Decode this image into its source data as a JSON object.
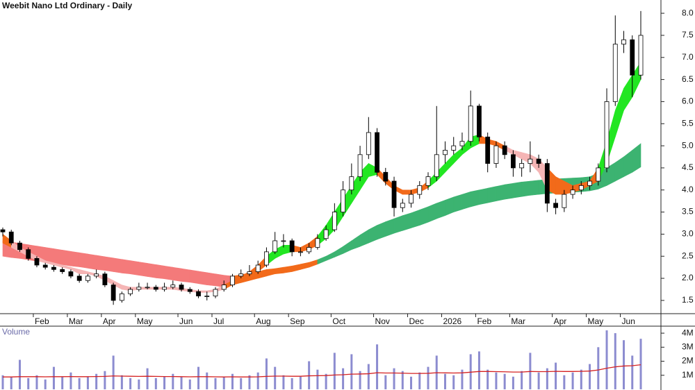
{
  "chart_data": [
    {
      "type": "candlestick",
      "title": "Weebit Nano Ltd Ordinary - Daily",
      "categories": [
        null,
        null,
        null,
        null,
        "Feb",
        null,
        null,
        null,
        "Mar",
        null,
        null,
        null,
        "Apr",
        null,
        null,
        null,
        "May",
        null,
        null,
        null,
        null,
        "Jun",
        null,
        null,
        null,
        "Jul",
        null,
        null,
        null,
        null,
        "Aug",
        null,
        null,
        null,
        "Sep",
        null,
        null,
        null,
        null,
        "Oct",
        null,
        null,
        null,
        null,
        "Nov",
        null,
        null,
        null,
        "Dec",
        null,
        null,
        null,
        "2026",
        null,
        null,
        null,
        "Feb",
        null,
        null,
        null,
        "Mar",
        null,
        null,
        null,
        null,
        "Apr",
        null,
        null,
        null,
        "May",
        null,
        null,
        null,
        "Jun",
        null,
        null
      ],
      "open": [
        3.1,
        3.05,
        2.8,
        2.65,
        2.45,
        2.3,
        2.25,
        2.2,
        2.15,
        2.05,
        1.95,
        2.05,
        2.1,
        1.85,
        1.5,
        1.65,
        1.75,
        1.8,
        1.8,
        1.75,
        1.8,
        1.85,
        1.75,
        1.7,
        1.6,
        1.6,
        1.75,
        1.85,
        2.05,
        2.1,
        2.15,
        2.3,
        2.6,
        2.85,
        2.85,
        2.6,
        2.6,
        2.7,
        2.9,
        3.1,
        3.5,
        4.0,
        4.3,
        4.8,
        5.3,
        4.4,
        4.2,
        3.6,
        3.7,
        3.9,
        4.1,
        4.3,
        4.8,
        4.9,
        5.0,
        5.1,
        5.9,
        5.2,
        4.6,
        5.0,
        4.8,
        4.5,
        4.6,
        4.7,
        4.6,
        3.7,
        3.6,
        3.9,
        4.0,
        4.1,
        4.2,
        4.5,
        6.0,
        7.3,
        7.4,
        6.6
      ],
      "high": [
        3.15,
        3.1,
        2.85,
        2.7,
        2.5,
        2.35,
        2.3,
        2.25,
        2.2,
        2.1,
        2.1,
        2.2,
        2.15,
        1.9,
        1.7,
        1.8,
        1.9,
        1.9,
        1.85,
        1.9,
        1.95,
        1.9,
        1.8,
        1.75,
        1.7,
        1.8,
        1.95,
        2.1,
        2.2,
        2.3,
        2.4,
        2.7,
        3.05,
        3.0,
        2.9,
        2.7,
        2.8,
        3.0,
        3.2,
        3.7,
        4.2,
        4.6,
        5.0,
        5.65,
        5.4,
        4.5,
        4.3,
        3.8,
        4.0,
        4.2,
        4.4,
        5.9,
        5.1,
        5.2,
        5.3,
        6.25,
        5.95,
        5.3,
        5.1,
        5.1,
        4.9,
        4.7,
        5.1,
        4.8,
        4.7,
        3.8,
        4.0,
        4.1,
        4.2,
        4.3,
        4.6,
        6.3,
        7.95,
        7.6,
        7.5,
        8.05
      ],
      "low": [
        2.95,
        2.75,
        2.6,
        2.4,
        2.25,
        2.2,
        2.15,
        2.1,
        2.0,
        1.9,
        1.9,
        2.0,
        1.8,
        1.4,
        1.45,
        1.6,
        1.7,
        1.75,
        1.7,
        1.7,
        1.75,
        1.7,
        1.65,
        1.55,
        1.5,
        1.55,
        1.7,
        1.8,
        2.0,
        2.05,
        2.1,
        2.25,
        2.55,
        2.7,
        2.5,
        2.5,
        2.55,
        2.65,
        2.85,
        3.05,
        3.4,
        3.9,
        4.2,
        4.7,
        4.3,
        4.1,
        3.4,
        3.5,
        3.6,
        3.8,
        4.0,
        4.2,
        4.6,
        4.8,
        4.9,
        5.0,
        5.1,
        4.4,
        4.5,
        4.7,
        4.3,
        4.3,
        4.4,
        4.5,
        3.5,
        3.45,
        3.5,
        3.8,
        3.9,
        4.0,
        4.1,
        4.4,
        5.9,
        7.1,
        6.1,
        6.5
      ],
      "close": [
        3.05,
        2.8,
        2.65,
        2.45,
        2.3,
        2.25,
        2.2,
        2.15,
        2.05,
        1.95,
        2.05,
        2.1,
        1.85,
        1.5,
        1.65,
        1.75,
        1.8,
        1.8,
        1.75,
        1.8,
        1.85,
        1.75,
        1.7,
        1.6,
        1.6,
        1.75,
        1.85,
        2.05,
        2.1,
        2.15,
        2.3,
        2.6,
        2.85,
        2.85,
        2.6,
        2.6,
        2.7,
        2.9,
        3.1,
        3.5,
        4.0,
        4.3,
        4.8,
        5.3,
        4.4,
        4.2,
        3.6,
        3.7,
        3.9,
        4.1,
        4.3,
        4.8,
        4.9,
        5.0,
        5.1,
        5.9,
        5.2,
        4.6,
        5.0,
        4.8,
        4.5,
        4.6,
        4.7,
        4.6,
        3.7,
        3.6,
        3.9,
        4.0,
        4.1,
        4.2,
        4.5,
        6.0,
        7.3,
        7.4,
        6.6,
        7.5
      ],
      "ribbons": [
        {
          "upper": [
            2.85,
            2.82,
            2.79,
            2.76,
            2.73,
            2.7,
            2.67,
            2.64,
            2.61,
            2.58,
            2.55,
            2.52,
            2.49,
            2.46,
            2.43,
            2.4,
            2.37,
            2.34,
            2.31,
            2.28,
            2.25,
            2.22,
            2.19,
            2.16,
            2.13,
            2.1,
            2.07,
            2.05,
            2.08,
            2.12,
            2.15,
            2.2,
            2.22,
            2.25,
            2.28,
            2.32,
            2.36,
            2.42,
            2.5,
            2.6,
            2.72,
            2.85,
            2.98,
            3.1,
            3.2,
            3.28,
            3.35,
            3.42,
            3.48,
            3.55,
            3.62,
            3.7,
            3.77,
            3.84,
            3.9,
            3.96,
            4.0,
            4.04,
            4.08,
            4.12,
            4.15,
            4.18,
            4.2,
            4.22,
            4.24,
            4.25,
            4.26,
            4.27,
            4.28,
            4.3,
            4.38,
            4.5,
            4.62,
            4.75,
            4.9,
            5.05
          ],
          "lower": [
            2.5,
            2.47,
            2.45,
            2.42,
            2.39,
            2.37,
            2.34,
            2.31,
            2.28,
            2.26,
            2.23,
            2.2,
            2.18,
            2.15,
            2.12,
            2.1,
            2.07,
            2.04,
            2.01,
            1.99,
            1.96,
            1.93,
            1.91,
            1.88,
            1.85,
            1.83,
            1.8,
            1.85,
            1.9,
            1.95,
            2.0,
            2.05,
            2.1,
            2.12,
            2.15,
            2.2,
            2.25,
            2.32,
            2.4,
            2.48,
            2.56,
            2.65,
            2.72,
            2.8,
            2.88,
            2.95,
            3.02,
            3.08,
            3.14,
            3.2,
            3.27,
            3.35,
            3.42,
            3.5,
            3.56,
            3.62,
            3.67,
            3.71,
            3.75,
            3.79,
            3.82,
            3.85,
            3.88,
            3.9,
            3.92,
            3.93,
            3.94,
            3.95,
            3.96,
            3.98,
            4.02,
            4.1,
            4.2,
            4.3,
            4.4,
            4.52
          ],
          "colors": [
            "#f47a7a",
            "#f47a7a",
            "#f47a7a",
            "#f47a7a",
            "#f47a7a",
            "#f47a7a",
            "#f47a7a",
            "#f47a7a",
            "#f47a7a",
            "#f47a7a",
            "#f47a7a",
            "#f47a7a",
            "#f47a7a",
            "#f47a7a",
            "#f47a7a",
            "#f47a7a",
            "#f47a7a",
            "#f47a7a",
            "#f47a7a",
            "#f47a7a",
            "#f47a7a",
            "#f47a7a",
            "#f47a7a",
            "#f47a7a",
            "#f47a7a",
            "#f47a7a",
            "#f47a7a",
            "#f26a1a",
            "#f26a1a",
            "#f26a1a",
            "#f26a1a",
            "#f26a1a",
            "#f26a1a",
            "#f26a1a",
            "#f26a1a",
            "#f26a1a",
            "#f26a1a",
            "#3cb371",
            "#3cb371",
            "#3cb371",
            "#3cb371",
            "#3cb371",
            "#3cb371",
            "#3cb371",
            "#3cb371",
            "#3cb371",
            "#3cb371",
            "#3cb371",
            "#3cb371",
            "#3cb371",
            "#3cb371",
            "#3cb371",
            "#3cb371",
            "#3cb371",
            "#3cb371",
            "#3cb371",
            "#3cb371",
            "#3cb371",
            "#3cb371",
            "#3cb371",
            "#3cb371",
            "#3cb371",
            "#3cb371",
            "#3cb371",
            "#3cb371",
            "#3cb371",
            "#3cb371",
            "#3cb371",
            "#3cb371",
            "#3cb371",
            "#3cb371",
            "#3cb371",
            "#3cb371",
            "#3cb371",
            "#3cb371",
            "#3cb371"
          ]
        },
        {
          "upper": [
            3.0,
            2.85,
            2.7,
            2.6,
            2.5,
            2.4,
            2.35,
            2.3,
            2.25,
            2.2,
            2.15,
            2.1,
            2.05,
            1.95,
            1.85,
            1.8,
            1.8,
            1.8,
            1.8,
            1.8,
            1.8,
            1.78,
            1.75,
            1.72,
            1.72,
            1.75,
            1.85,
            1.95,
            2.05,
            2.15,
            2.3,
            2.5,
            2.65,
            2.75,
            2.75,
            2.7,
            2.8,
            2.95,
            3.2,
            3.5,
            3.8,
            4.1,
            4.4,
            4.6,
            4.5,
            4.3,
            4.1,
            4.0,
            4.0,
            4.05,
            4.2,
            4.4,
            4.6,
            4.8,
            4.95,
            5.2,
            5.25,
            5.15,
            5.1,
            5.0,
            4.9,
            4.85,
            4.8,
            4.7,
            4.5,
            4.3,
            4.2,
            4.1,
            4.15,
            4.2,
            4.5,
            5.1,
            5.8,
            6.3,
            6.6,
            6.9
          ],
          "lower": [
            2.8,
            2.7,
            2.6,
            2.5,
            2.4,
            2.35,
            2.3,
            2.25,
            2.2,
            2.1,
            2.1,
            2.05,
            1.95,
            1.85,
            1.75,
            1.72,
            1.75,
            1.75,
            1.75,
            1.75,
            1.75,
            1.72,
            1.7,
            1.68,
            1.68,
            1.7,
            1.75,
            1.85,
            1.95,
            2.05,
            2.15,
            2.3,
            2.45,
            2.55,
            2.6,
            2.6,
            2.65,
            2.75,
            2.9,
            3.1,
            3.4,
            3.7,
            4.0,
            4.3,
            4.35,
            4.15,
            4.0,
            3.9,
            3.9,
            3.95,
            4.05,
            4.2,
            4.4,
            4.6,
            4.8,
            4.95,
            5.05,
            5.05,
            5.0,
            4.9,
            4.8,
            4.7,
            4.6,
            4.4,
            4.0,
            3.9,
            3.9,
            3.95,
            4.0,
            4.1,
            4.2,
            4.6,
            5.2,
            5.8,
            6.1,
            6.5
          ],
          "colors": [
            "#f26a1a",
            "#f5b5b5",
            "#f5b5b5",
            "#f5b5b5",
            "#f5b5b5",
            "#f5b5b5",
            "#f5b5b5",
            "#f5b5b5",
            "#f5b5b5",
            "#f5b5b5",
            "#f5b5b5",
            "#f5b5b5",
            "#f5b5b5",
            "#f5b5b5",
            "#f5b5b5",
            "#f5b5b5",
            "#f5b5b5",
            "#f5b5b5",
            "#f5b5b5",
            "#f5b5b5",
            "#f5b5b5",
            "#f5b5b5",
            "#f5b5b5",
            "#f5b5b5",
            "#f5b5b5",
            "#f5b5b5",
            "#f26a1a",
            "#f26a1a",
            "#f26a1a",
            "#f26a1a",
            "#f26a1a",
            "#22e622",
            "#22e622",
            "#22e622",
            "#f26a1a",
            "#f26a1a",
            "#f26a1a",
            "#22e622",
            "#22e622",
            "#22e622",
            "#22e622",
            "#22e622",
            "#22e622",
            "#22e622",
            "#f26a1a",
            "#f26a1a",
            "#f26a1a",
            "#f26a1a",
            "#f26a1a",
            "#f26a1a",
            "#22e622",
            "#22e622",
            "#22e622",
            "#22e622",
            "#22e622",
            "#22e622",
            "#f26a1a",
            "#f26a1a",
            "#f26a1a",
            "#f5b5b5",
            "#f5b5b5",
            "#f5b5b5",
            "#f5b5b5",
            "#f5b5b5",
            "#f26a1a",
            "#f26a1a",
            "#f26a1a",
            "#f26a1a",
            "#f26a1a",
            "#f26a1a",
            "#22e622",
            "#22e622",
            "#22e622",
            "#22e622",
            "#22e622",
            "#22e622"
          ]
        }
      ],
      "ylim": [
        1.2,
        8.3
      ],
      "yticks": [
        1.5,
        {
          "value": 2,
          "label": "2.0"
        },
        2.5,
        {
          "value": 3,
          "label": "3.0"
        },
        3.5,
        {
          "value": 4,
          "label": "4.0"
        },
        4.5,
        {
          "value": 5,
          "label": "5.0"
        },
        5.5,
        {
          "value": 6,
          "label": "6.0"
        },
        6.5,
        {
          "value": 7,
          "label": "7.0"
        },
        7.5,
        {
          "value": 8,
          "label": "8.0"
        }
      ]
    },
    {
      "type": "bar",
      "title": "Volume",
      "color": "#8c8cd0",
      "values": [
        1000000,
        900000,
        2100000,
        800000,
        1000000,
        700000,
        1600000,
        900000,
        1200000,
        800000,
        900000,
        1100000,
        1300000,
        2400000,
        1000000,
        800000,
        700000,
        1500000,
        800000,
        900000,
        1100000,
        900000,
        700000,
        1600000,
        1200000,
        800000,
        900000,
        1100000,
        800000,
        1000000,
        1200000,
        2200000,
        1600000,
        1000000,
        800000,
        900000,
        2000000,
        1400000,
        1100000,
        2600000,
        1500000,
        2500000,
        1300000,
        1800000,
        3200000,
        1000000,
        1500000,
        1300000,
        900000,
        1200000,
        1600000,
        2400000,
        1100000,
        1000000,
        1400000,
        2500000,
        2700000,
        1400000,
        1200000,
        1100000,
        900000,
        1300000,
        2600000,
        1200000,
        1500000,
        1900000,
        1000000,
        1200000,
        1400000,
        1800000,
        3000000,
        4200000,
        4000000,
        3500000,
        2400000,
        3600000
      ],
      "average": {
        "color": "#d42020",
        "values": [
          880000,
          880000,
          900000,
          900000,
          900000,
          890000,
          900000,
          900000,
          910000,
          900000,
          900000,
          910000,
          920000,
          950000,
          940000,
          930000,
          920000,
          930000,
          920000,
          910000,
          910000,
          900000,
          890000,
          900000,
          900000,
          890000,
          880000,
          890000,
          880000,
          880000,
          890000,
          920000,
          940000,
          940000,
          930000,
          930000,
          960000,
          970000,
          980000,
          1020000,
          1040000,
          1080000,
          1090000,
          1110000,
          1180000,
          1160000,
          1160000,
          1150000,
          1130000,
          1130000,
          1140000,
          1180000,
          1170000,
          1160000,
          1170000,
          1220000,
          1270000,
          1270000,
          1260000,
          1250000,
          1230000,
          1230000,
          1270000,
          1260000,
          1260000,
          1280000,
          1270000,
          1270000,
          1280000,
          1300000,
          1380000,
          1500000,
          1600000,
          1660000,
          1680000,
          1750000
        ]
      },
      "ylim": [
        0,
        4400000
      ],
      "yticks": [
        {
          "value": 1000000,
          "label": "1M"
        },
        {
          "value": 2000000,
          "label": "2M"
        },
        {
          "value": 3000000,
          "label": "3M"
        },
        {
          "value": 4000000,
          "label": "4M"
        }
      ]
    }
  ]
}
